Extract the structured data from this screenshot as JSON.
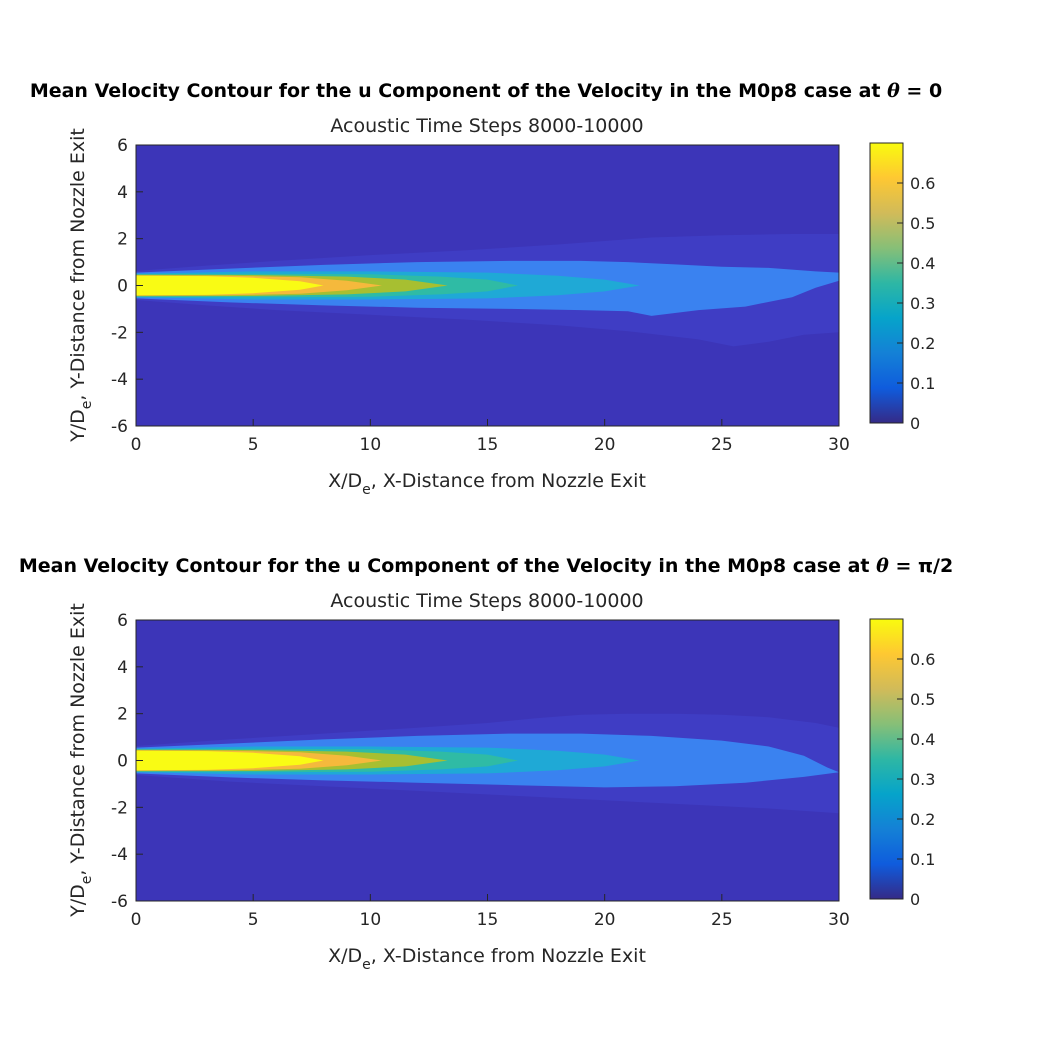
{
  "chart_data": [
    {
      "type": "heatmap",
      "subtype": "filled-contour",
      "title_prefix": "Mean Velocity Contour for the u Component of the Velocity in the M0p8 case at ",
      "title_symbol": "θ",
      "title_suffix": " = 0",
      "subtitle": "Acoustic Time Steps 8000-10000",
      "xlabel_main": "X/D",
      "xlabel_sub": "e",
      "xlabel_rest": ", X-Distance from Nozzle Exit",
      "ylabel_main": "Y/D",
      "ylabel_sub": "e",
      "ylabel_rest": ", Y-Distance from Nozzle Exit",
      "xlim": [
        0,
        30
      ],
      "ylim": [
        -6,
        6
      ],
      "xticks": [
        "0",
        "5",
        "10",
        "15",
        "20",
        "25",
        "30"
      ],
      "yticks": [
        "6",
        "4",
        "2",
        "0",
        "-2",
        "-4",
        "-6"
      ],
      "colorbar": {
        "range": [
          0,
          0.7
        ],
        "ticks": [
          "0.6",
          "0.5",
          "0.4",
          "0.3",
          "0.2",
          "0.1",
          "0"
        ],
        "colormap": "parula"
      },
      "levels": [
        {
          "value": 0.05,
          "color": "#3f3dc4",
          "top": [
            [
              0,
              0.62
            ],
            [
              3,
              0.85
            ],
            [
              6,
              1.05
            ],
            [
              10,
              1.3
            ],
            [
              14,
              1.5
            ],
            [
              18,
              1.75
            ],
            [
              20,
              1.9
            ],
            [
              22,
              2.05
            ],
            [
              25,
              2.15
            ],
            [
              28,
              2.2
            ],
            [
              30,
              2.2
            ]
          ],
          "bottom": [
            [
              0,
              -0.62
            ],
            [
              3,
              -0.85
            ],
            [
              6,
              -1.05
            ],
            [
              10,
              -1.25
            ],
            [
              14,
              -1.45
            ],
            [
              18,
              -1.7
            ],
            [
              21,
              -1.95
            ],
            [
              24,
              -2.3
            ],
            [
              25.5,
              -2.6
            ],
            [
              27,
              -2.4
            ],
            [
              28.5,
              -2.1
            ],
            [
              30,
              -2.0
            ]
          ]
        },
        {
          "value": 0.15,
          "color": "#3a82f0",
          "top": [
            [
              0,
              0.55
            ],
            [
              4,
              0.72
            ],
            [
              8,
              0.88
            ],
            [
              12,
              1.0
            ],
            [
              16,
              1.05
            ],
            [
              19,
              1.05
            ],
            [
              21,
              1.0
            ],
            [
              23,
              0.9
            ],
            [
              25,
              0.8
            ],
            [
              27,
              0.75
            ],
            [
              29,
              0.6
            ],
            [
              30,
              0.55
            ]
          ],
          "bottom": [
            [
              0,
              -0.55
            ],
            [
              4,
              -0.72
            ],
            [
              8,
              -0.85
            ],
            [
              12,
              -0.95
            ],
            [
              16,
              -1.0
            ],
            [
              19,
              -1.05
            ],
            [
              21,
              -1.1
            ],
            [
              22,
              -1.3
            ],
            [
              24,
              -1.05
            ],
            [
              26,
              -0.9
            ],
            [
              28,
              -0.5
            ],
            [
              29,
              -0.1
            ],
            [
              30,
              0.2
            ]
          ]
        },
        {
          "value": 0.25,
          "color": "#1fa9d6",
          "top": [
            [
              0,
              0.5
            ],
            [
              5,
              0.6
            ],
            [
              10,
              0.6
            ],
            [
              15,
              0.55
            ],
            [
              18,
              0.42
            ],
            [
              20,
              0.25
            ],
            [
              21.5,
              0.0
            ]
          ],
          "bottom": [
            [
              0,
              -0.5
            ],
            [
              5,
              -0.6
            ],
            [
              10,
              -0.6
            ],
            [
              15,
              -0.55
            ],
            [
              18,
              -0.42
            ],
            [
              20,
              -0.25
            ],
            [
              21.5,
              0.0
            ]
          ]
        },
        {
          "value": 0.35,
          "color": "#2fbba5",
          "top": [
            [
              0,
              0.48
            ],
            [
              5,
              0.5
            ],
            [
              10,
              0.48
            ],
            [
              13,
              0.38
            ],
            [
              15,
              0.25
            ],
            [
              16.3,
              0.0
            ]
          ],
          "bottom": [
            [
              0,
              -0.48
            ],
            [
              5,
              -0.5
            ],
            [
              10,
              -0.48
            ],
            [
              13,
              -0.38
            ],
            [
              15,
              -0.25
            ],
            [
              16.3,
              0.0
            ]
          ]
        },
        {
          "value": 0.45,
          "color": "#a7bf31",
          "top": [
            [
              0,
              0.46
            ],
            [
              5,
              0.45
            ],
            [
              9,
              0.38
            ],
            [
              11.5,
              0.25
            ],
            [
              13.3,
              0.0
            ]
          ],
          "bottom": [
            [
              0,
              -0.46
            ],
            [
              5,
              -0.45
            ],
            [
              9,
              -0.38
            ],
            [
              11.5,
              -0.25
            ],
            [
              13.3,
              0.0
            ]
          ]
        },
        {
          "value": 0.55,
          "color": "#f5b93c",
          "top": [
            [
              0,
              0.44
            ],
            [
              4,
              0.42
            ],
            [
              7,
              0.35
            ],
            [
              9,
              0.2
            ],
            [
              10.5,
              0.0
            ]
          ],
          "bottom": [
            [
              0,
              -0.44
            ],
            [
              4,
              -0.42
            ],
            [
              7,
              -0.35
            ],
            [
              9,
              -0.2
            ],
            [
              10.5,
              0.0
            ]
          ]
        },
        {
          "value": 0.65,
          "color": "#f9fb14",
          "top": [
            [
              0,
              0.42
            ],
            [
              3,
              0.4
            ],
            [
              5,
              0.33
            ],
            [
              7,
              0.18
            ],
            [
              8,
              0.0
            ]
          ],
          "bottom": [
            [
              0,
              -0.42
            ],
            [
              3,
              -0.4
            ],
            [
              5,
              -0.33
            ],
            [
              7,
              -0.18
            ],
            [
              8,
              0.0
            ]
          ]
        }
      ]
    },
    {
      "type": "heatmap",
      "subtype": "filled-contour",
      "title_prefix": "Mean Velocity Contour for the u Component of the Velocity in the M0p8 case at ",
      "title_symbol": "θ",
      "title_suffix": " = π/2",
      "subtitle": "Acoustic Time Steps 8000-10000",
      "xlabel_main": "X/D",
      "xlabel_sub": "e",
      "xlabel_rest": ", X-Distance from Nozzle Exit",
      "ylabel_main": "Y/D",
      "ylabel_sub": "e",
      "ylabel_rest": ", Y-Distance from Nozzle Exit",
      "xlim": [
        0,
        30
      ],
      "ylim": [
        -6,
        6
      ],
      "xticks": [
        "0",
        "5",
        "10",
        "15",
        "20",
        "25",
        "30"
      ],
      "yticks": [
        "6",
        "4",
        "2",
        "0",
        "-2",
        "-4",
        "-6"
      ],
      "colorbar": {
        "range": [
          0,
          0.7
        ],
        "ticks": [
          "0.6",
          "0.5",
          "0.4",
          "0.3",
          "0.2",
          "0.1",
          "0"
        ],
        "colormap": "parula"
      },
      "levels": [
        {
          "value": 0.05,
          "color": "#3f3dc4",
          "top": [
            [
              0,
              0.62
            ],
            [
              4,
              0.9
            ],
            [
              8,
              1.15
            ],
            [
              12,
              1.4
            ],
            [
              15,
              1.6
            ],
            [
              17,
              1.8
            ],
            [
              19,
              1.95
            ],
            [
              21,
              2.0
            ],
            [
              23,
              2.0
            ],
            [
              25,
              1.95
            ],
            [
              27,
              1.85
            ],
            [
              29,
              1.6
            ],
            [
              30,
              1.4
            ]
          ],
          "bottom": [
            [
              0,
              -0.62
            ],
            [
              4,
              -0.9
            ],
            [
              8,
              -1.1
            ],
            [
              12,
              -1.3
            ],
            [
              16,
              -1.5
            ],
            [
              20,
              -1.7
            ],
            [
              24,
              -1.9
            ],
            [
              27,
              -2.05
            ],
            [
              30,
              -2.25
            ]
          ]
        },
        {
          "value": 0.15,
          "color": "#3a82f0",
          "top": [
            [
              0,
              0.55
            ],
            [
              4,
              0.72
            ],
            [
              8,
              0.9
            ],
            [
              12,
              1.05
            ],
            [
              16,
              1.15
            ],
            [
              19,
              1.15
            ],
            [
              22,
              1.05
            ],
            [
              25,
              0.85
            ],
            [
              27,
              0.6
            ],
            [
              28.5,
              0.2
            ],
            [
              29.5,
              -0.3
            ],
            [
              30,
              -0.5
            ]
          ],
          "bottom": [
            [
              0,
              -0.55
            ],
            [
              4,
              -0.72
            ],
            [
              8,
              -0.85
            ],
            [
              12,
              -0.95
            ],
            [
              16,
              -1.05
            ],
            [
              20,
              -1.15
            ],
            [
              23,
              -1.1
            ],
            [
              26,
              -0.95
            ],
            [
              28.5,
              -0.7
            ],
            [
              30,
              -0.5
            ]
          ]
        },
        {
          "value": 0.25,
          "color": "#1fa9d6",
          "top": [
            [
              0,
              0.5
            ],
            [
              5,
              0.6
            ],
            [
              10,
              0.6
            ],
            [
              15,
              0.55
            ],
            [
              18,
              0.42
            ],
            [
              20,
              0.25
            ],
            [
              21.5,
              0.0
            ]
          ],
          "bottom": [
            [
              0,
              -0.5
            ],
            [
              5,
              -0.6
            ],
            [
              10,
              -0.6
            ],
            [
              15,
              -0.55
            ],
            [
              18,
              -0.42
            ],
            [
              20,
              -0.25
            ],
            [
              21.5,
              0.0
            ]
          ]
        },
        {
          "value": 0.35,
          "color": "#2fbba5",
          "top": [
            [
              0,
              0.48
            ],
            [
              5,
              0.5
            ],
            [
              10,
              0.48
            ],
            [
              13,
              0.38
            ],
            [
              15,
              0.25
            ],
            [
              16.3,
              0.0
            ]
          ],
          "bottom": [
            [
              0,
              -0.48
            ],
            [
              5,
              -0.5
            ],
            [
              10,
              -0.48
            ],
            [
              13,
              -0.38
            ],
            [
              15,
              -0.25
            ],
            [
              16.3,
              0.0
            ]
          ]
        },
        {
          "value": 0.45,
          "color": "#a7bf31",
          "top": [
            [
              0,
              0.46
            ],
            [
              5,
              0.45
            ],
            [
              9,
              0.38
            ],
            [
              11.5,
              0.25
            ],
            [
              13.3,
              0.0
            ]
          ],
          "bottom": [
            [
              0,
              -0.46
            ],
            [
              5,
              -0.45
            ],
            [
              9,
              -0.38
            ],
            [
              11.5,
              -0.25
            ],
            [
              13.3,
              0.0
            ]
          ]
        },
        {
          "value": 0.55,
          "color": "#f5b93c",
          "top": [
            [
              0,
              0.44
            ],
            [
              4,
              0.42
            ],
            [
              7,
              0.35
            ],
            [
              9,
              0.2
            ],
            [
              10.5,
              0.0
            ]
          ],
          "bottom": [
            [
              0,
              -0.44
            ],
            [
              4,
              -0.42
            ],
            [
              7,
              -0.35
            ],
            [
              9,
              -0.2
            ],
            [
              10.5,
              0.0
            ]
          ]
        },
        {
          "value": 0.65,
          "color": "#f9fb14",
          "top": [
            [
              0,
              0.42
            ],
            [
              3,
              0.4
            ],
            [
              5,
              0.33
            ],
            [
              7,
              0.18
            ],
            [
              8,
              0.0
            ]
          ],
          "bottom": [
            [
              0,
              -0.42
            ],
            [
              3,
              -0.4
            ],
            [
              5,
              -0.33
            ],
            [
              7,
              -0.18
            ],
            [
              8,
              0.0
            ]
          ]
        }
      ]
    }
  ],
  "colors": {
    "background_field": "#3c35b8",
    "axis": "#262626",
    "parula_stops": [
      "#352a87",
      "#0f5cdd",
      "#1481d6",
      "#06a4ca",
      "#2eb7a4",
      "#87bf77",
      "#d1bb59",
      "#fec832",
      "#f9fb0e"
    ]
  }
}
